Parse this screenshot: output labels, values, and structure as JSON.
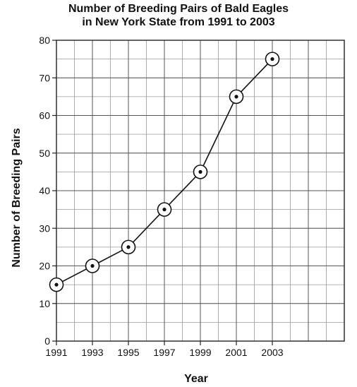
{
  "chart_data": {
    "type": "line",
    "title": "Number of Breeding Pairs of Bald Eagles",
    "subtitle": "in New York State from 1991 to 2003",
    "xlabel": "Year",
    "ylabel": "Number of Breeding Pairs",
    "x": [
      1991,
      1993,
      1995,
      1997,
      1999,
      2001,
      2003
    ],
    "series": [
      {
        "values": [
          15,
          20,
          25,
          35,
          45,
          65,
          75
        ]
      }
    ],
    "xlim": [
      1991,
      2007
    ],
    "ylim": [
      0,
      80
    ],
    "x_tick_labels": [
      "1991",
      "1993",
      "1995",
      "1997",
      "1999",
      "2001",
      "2003"
    ],
    "y_tick_labels": [
      "0",
      "10",
      "20",
      "30",
      "40",
      "50",
      "60",
      "70",
      "80"
    ],
    "grid": true,
    "marker": "circled-dot",
    "color": "#111111"
  }
}
